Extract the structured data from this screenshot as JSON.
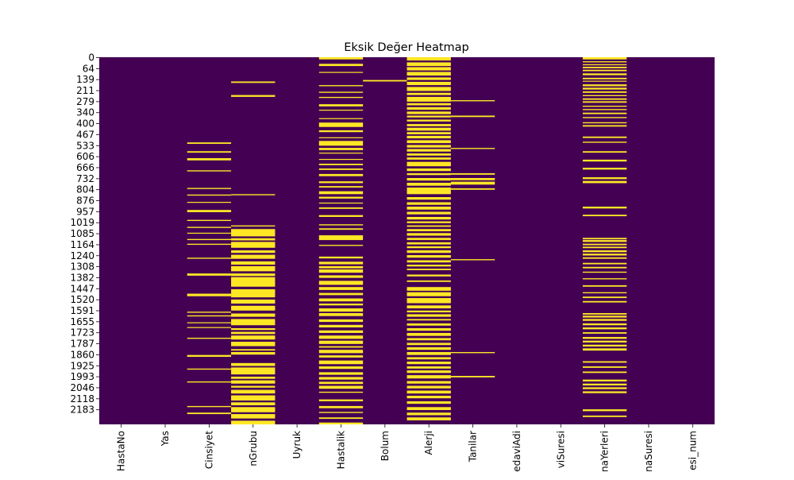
{
  "chart_data": {
    "type": "heatmap",
    "title": "Eksik Değer Heatmap",
    "xlabel": "",
    "ylabel": "",
    "columns": [
      "HastaNo",
      "Yas",
      "Cinsiyet",
      "KanGrubu",
      "Uyruk",
      "KronikHastalik",
      "Bolum",
      "Alerji",
      "Tanilar",
      "TedaviAdi",
      "TedaviSuresi",
      "UygulamaYerleri",
      "UygulamaSuresi",
      "TedaviSuresi_num"
    ],
    "column_tick_labels": [
      "HastaNo",
      "Yas",
      "Cinsiyet",
      "nGrubu",
      "Uyruk",
      "Hastalik",
      "Bolum",
      "Alerji",
      "Tanilar",
      "edaviAdi",
      "viSuresi",
      "naYerleri",
      "naSuresi",
      "esi_num"
    ],
    "y_tick_labels": [
      "0",
      "64",
      "139",
      "211",
      "279",
      "340",
      "400",
      "467",
      "533",
      "606",
      "666",
      "732",
      "804",
      "876",
      "957",
      "1019",
      "1085",
      "1164",
      "1240",
      "1308",
      "1382",
      "1447",
      "1520",
      "1591",
      "1655",
      "1723",
      "1787",
      "1860",
      "1925",
      "1993",
      "2046",
      "2118",
      "2183"
    ],
    "colors": {
      "present": "#440154",
      "missing": "#fde725"
    },
    "missing_segments": {
      "Cinsiyet": [
        [
          0.232,
          0.236
        ],
        [
          0.256,
          0.26
        ],
        [
          0.275,
          0.281
        ],
        [
          0.308,
          0.311
        ],
        [
          0.356,
          0.359
        ],
        [
          0.374,
          0.377
        ],
        [
          0.394,
          0.396
        ],
        [
          0.416,
          0.422
        ],
        [
          0.443,
          0.446
        ],
        [
          0.462,
          0.465
        ],
        [
          0.478,
          0.48
        ],
        [
          0.495,
          0.498
        ],
        [
          0.508,
          0.511
        ],
        [
          0.546,
          0.549
        ],
        [
          0.589,
          0.595
        ],
        [
          0.644,
          0.651
        ],
        [
          0.693,
          0.696
        ],
        [
          0.703,
          0.706
        ],
        [
          0.722,
          0.724
        ],
        [
          0.735,
          0.737
        ],
        [
          0.764,
          0.767
        ],
        [
          0.811,
          0.816
        ],
        [
          0.848,
          0.851
        ],
        [
          0.883,
          0.886
        ],
        [
          0.95,
          0.953
        ],
        [
          0.968,
          0.972
        ]
      ],
      "KanGrubu": [
        [
          0.066,
          0.07
        ],
        [
          0.103,
          0.108
        ],
        [
          0.373,
          0.376
        ],
        [
          0.458,
          0.461
        ],
        [
          0.468,
          0.488
        ],
        [
          0.493,
          0.499
        ],
        [
          0.503,
          0.519
        ],
        [
          0.526,
          0.533
        ],
        [
          0.538,
          0.549
        ],
        [
          0.556,
          0.565
        ],
        [
          0.569,
          0.583
        ],
        [
          0.589,
          0.596
        ],
        [
          0.599,
          0.625
        ],
        [
          0.632,
          0.654
        ],
        [
          0.66,
          0.671
        ],
        [
          0.677,
          0.69
        ],
        [
          0.698,
          0.707
        ],
        [
          0.713,
          0.73
        ],
        [
          0.738,
          0.743
        ],
        [
          0.748,
          0.754
        ],
        [
          0.758,
          0.769
        ],
        [
          0.775,
          0.787
        ],
        [
          0.795,
          0.799
        ],
        [
          0.803,
          0.81
        ],
        [
          0.833,
          0.841
        ],
        [
          0.845,
          0.864
        ],
        [
          0.87,
          0.876
        ],
        [
          0.88,
          0.889
        ],
        [
          0.895,
          0.9
        ],
        [
          0.906,
          0.916
        ],
        [
          0.921,
          0.935
        ],
        [
          0.94,
          0.948
        ],
        [
          0.953,
          0.967
        ],
        [
          0.972,
          0.984
        ],
        [
          0.99,
          1.0
        ]
      ],
      "KronikHastalik": [
        [
          0.0,
          0.006
        ],
        [
          0.018,
          0.024
        ],
        [
          0.04,
          0.042
        ],
        [
          0.076,
          0.079
        ],
        [
          0.094,
          0.097
        ],
        [
          0.108,
          0.111
        ],
        [
          0.128,
          0.134
        ],
        [
          0.143,
          0.145
        ],
        [
          0.166,
          0.168
        ],
        [
          0.178,
          0.19
        ],
        [
          0.199,
          0.204
        ],
        [
          0.218,
          0.22
        ],
        [
          0.228,
          0.241
        ],
        [
          0.247,
          0.253
        ],
        [
          0.26,
          0.262
        ],
        [
          0.277,
          0.279
        ],
        [
          0.29,
          0.294
        ],
        [
          0.303,
          0.307
        ],
        [
          0.318,
          0.324
        ],
        [
          0.338,
          0.343
        ],
        [
          0.351,
          0.355
        ],
        [
          0.365,
          0.373
        ],
        [
          0.38,
          0.385
        ],
        [
          0.396,
          0.398
        ],
        [
          0.409,
          0.413
        ],
        [
          0.43,
          0.435
        ],
        [
          0.455,
          0.458
        ],
        [
          0.466,
          0.47
        ],
        [
          0.485,
          0.498
        ],
        [
          0.511,
          0.514
        ],
        [
          0.543,
          0.548
        ],
        [
          0.557,
          0.564
        ],
        [
          0.569,
          0.575
        ],
        [
          0.578,
          0.587
        ],
        [
          0.594,
          0.601
        ],
        [
          0.609,
          0.62
        ],
        [
          0.626,
          0.634
        ],
        [
          0.642,
          0.648
        ],
        [
          0.657,
          0.665
        ],
        [
          0.671,
          0.676
        ],
        [
          0.684,
          0.693
        ],
        [
          0.697,
          0.705
        ],
        [
          0.714,
          0.721
        ],
        [
          0.729,
          0.736
        ],
        [
          0.744,
          0.751
        ],
        [
          0.758,
          0.767
        ],
        [
          0.772,
          0.781
        ],
        [
          0.787,
          0.791
        ],
        [
          0.797,
          0.806
        ],
        [
          0.812,
          0.818
        ],
        [
          0.826,
          0.836
        ],
        [
          0.842,
          0.849
        ],
        [
          0.858,
          0.865
        ],
        [
          0.871,
          0.878
        ],
        [
          0.884,
          0.89
        ],
        [
          0.895,
          0.903
        ],
        [
          0.911,
          0.914
        ],
        [
          0.932,
          0.937
        ],
        [
          0.95,
          0.956
        ],
        [
          0.966,
          0.969
        ],
        [
          0.981,
          0.985
        ],
        [
          0.995,
          1.0
        ]
      ],
      "Bolum": [
        [
          0.062,
          0.066
        ]
      ],
      "Alerji": [
        [
          0.0,
          0.009
        ],
        [
          0.014,
          0.024
        ],
        [
          0.027,
          0.036
        ],
        [
          0.04,
          0.05
        ],
        [
          0.055,
          0.062
        ],
        [
          0.067,
          0.076
        ],
        [
          0.081,
          0.092
        ],
        [
          0.097,
          0.103
        ],
        [
          0.108,
          0.121
        ],
        [
          0.125,
          0.131
        ],
        [
          0.136,
          0.143
        ],
        [
          0.148,
          0.155
        ],
        [
          0.159,
          0.164
        ],
        [
          0.17,
          0.175
        ],
        [
          0.182,
          0.188
        ],
        [
          0.192,
          0.2
        ],
        [
          0.204,
          0.21
        ],
        [
          0.214,
          0.221
        ],
        [
          0.226,
          0.234
        ],
        [
          0.239,
          0.246
        ],
        [
          0.25,
          0.257
        ],
        [
          0.262,
          0.268
        ],
        [
          0.273,
          0.279
        ],
        [
          0.285,
          0.297
        ],
        [
          0.303,
          0.31
        ],
        [
          0.316,
          0.321
        ],
        [
          0.329,
          0.336
        ],
        [
          0.342,
          0.35
        ],
        [
          0.355,
          0.373
        ],
        [
          0.381,
          0.388
        ],
        [
          0.395,
          0.402
        ],
        [
          0.407,
          0.415
        ],
        [
          0.421,
          0.428
        ],
        [
          0.435,
          0.442
        ],
        [
          0.447,
          0.452
        ],
        [
          0.458,
          0.462
        ],
        [
          0.468,
          0.474
        ],
        [
          0.479,
          0.486
        ],
        [
          0.492,
          0.498
        ],
        [
          0.504,
          0.51
        ],
        [
          0.515,
          0.52
        ],
        [
          0.526,
          0.533
        ],
        [
          0.539,
          0.546
        ],
        [
          0.553,
          0.559
        ],
        [
          0.565,
          0.57
        ],
        [
          0.576,
          0.58
        ],
        [
          0.592,
          0.597
        ],
        [
          0.608,
          0.612
        ],
        [
          0.626,
          0.636
        ],
        [
          0.64,
          0.651
        ],
        [
          0.656,
          0.67
        ],
        [
          0.676,
          0.684
        ],
        [
          0.69,
          0.695
        ],
        [
          0.7,
          0.707
        ],
        [
          0.713,
          0.717
        ],
        [
          0.725,
          0.731
        ],
        [
          0.738,
          0.745
        ],
        [
          0.751,
          0.759
        ],
        [
          0.765,
          0.771
        ],
        [
          0.778,
          0.784
        ],
        [
          0.79,
          0.797
        ],
        [
          0.803,
          0.811
        ],
        [
          0.817,
          0.823
        ],
        [
          0.829,
          0.836
        ],
        [
          0.842,
          0.848
        ],
        [
          0.853,
          0.86
        ],
        [
          0.866,
          0.875
        ],
        [
          0.882,
          0.889
        ],
        [
          0.895,
          0.902
        ],
        [
          0.908,
          0.916
        ],
        [
          0.922,
          0.929
        ],
        [
          0.937,
          0.944
        ],
        [
          0.953,
          0.961
        ],
        [
          0.968,
          0.975
        ],
        [
          0.981,
          0.989
        ]
      ],
      "Tanilar": [
        [
          0.117,
          0.12
        ],
        [
          0.159,
          0.163
        ],
        [
          0.247,
          0.25
        ],
        [
          0.316,
          0.32
        ],
        [
          0.329,
          0.335
        ],
        [
          0.339,
          0.347
        ],
        [
          0.357,
          0.361
        ],
        [
          0.55,
          0.553
        ],
        [
          0.803,
          0.806
        ],
        [
          0.868,
          0.872
        ]
      ],
      "UygulamaYerleri": [
        [
          0.0,
          0.006
        ],
        [
          0.011,
          0.014
        ],
        [
          0.019,
          0.022
        ],
        [
          0.026,
          0.03
        ],
        [
          0.034,
          0.038
        ],
        [
          0.044,
          0.049
        ],
        [
          0.056,
          0.06
        ],
        [
          0.064,
          0.066
        ],
        [
          0.074,
          0.079
        ],
        [
          0.083,
          0.088
        ],
        [
          0.093,
          0.097
        ],
        [
          0.103,
          0.106
        ],
        [
          0.112,
          0.116
        ],
        [
          0.12,
          0.124
        ],
        [
          0.132,
          0.135
        ],
        [
          0.141,
          0.144
        ],
        [
          0.151,
          0.155
        ],
        [
          0.163,
          0.166
        ],
        [
          0.177,
          0.18
        ],
        [
          0.185,
          0.189
        ],
        [
          0.216,
          0.22
        ],
        [
          0.23,
          0.233
        ],
        [
          0.256,
          0.26
        ],
        [
          0.279,
          0.284
        ],
        [
          0.301,
          0.306
        ],
        [
          0.327,
          0.332
        ],
        [
          0.337,
          0.343
        ],
        [
          0.407,
          0.412
        ],
        [
          0.429,
          0.433
        ],
        [
          0.492,
          0.496
        ],
        [
          0.498,
          0.503
        ],
        [
          0.508,
          0.512
        ],
        [
          0.516,
          0.52
        ],
        [
          0.526,
          0.531
        ],
        [
          0.535,
          0.54
        ],
        [
          0.545,
          0.549
        ],
        [
          0.56,
          0.564
        ],
        [
          0.571,
          0.575
        ],
        [
          0.584,
          0.587
        ],
        [
          0.602,
          0.605
        ],
        [
          0.621,
          0.625
        ],
        [
          0.64,
          0.643
        ],
        [
          0.652,
          0.656
        ],
        [
          0.664,
          0.668
        ],
        [
          0.697,
          0.701
        ],
        [
          0.704,
          0.709
        ],
        [
          0.713,
          0.718
        ],
        [
          0.725,
          0.73
        ],
        [
          0.736,
          0.741
        ],
        [
          0.749,
          0.753
        ],
        [
          0.762,
          0.767
        ],
        [
          0.772,
          0.777
        ],
        [
          0.783,
          0.788
        ],
        [
          0.793,
          0.799
        ],
        [
          0.828,
          0.832
        ],
        [
          0.842,
          0.846
        ],
        [
          0.856,
          0.86
        ],
        [
          0.878,
          0.883
        ],
        [
          0.889,
          0.894
        ],
        [
          0.899,
          0.904
        ],
        [
          0.91,
          0.915
        ],
        [
          0.959,
          0.964
        ],
        [
          0.976,
          0.98
        ]
      ]
    }
  }
}
